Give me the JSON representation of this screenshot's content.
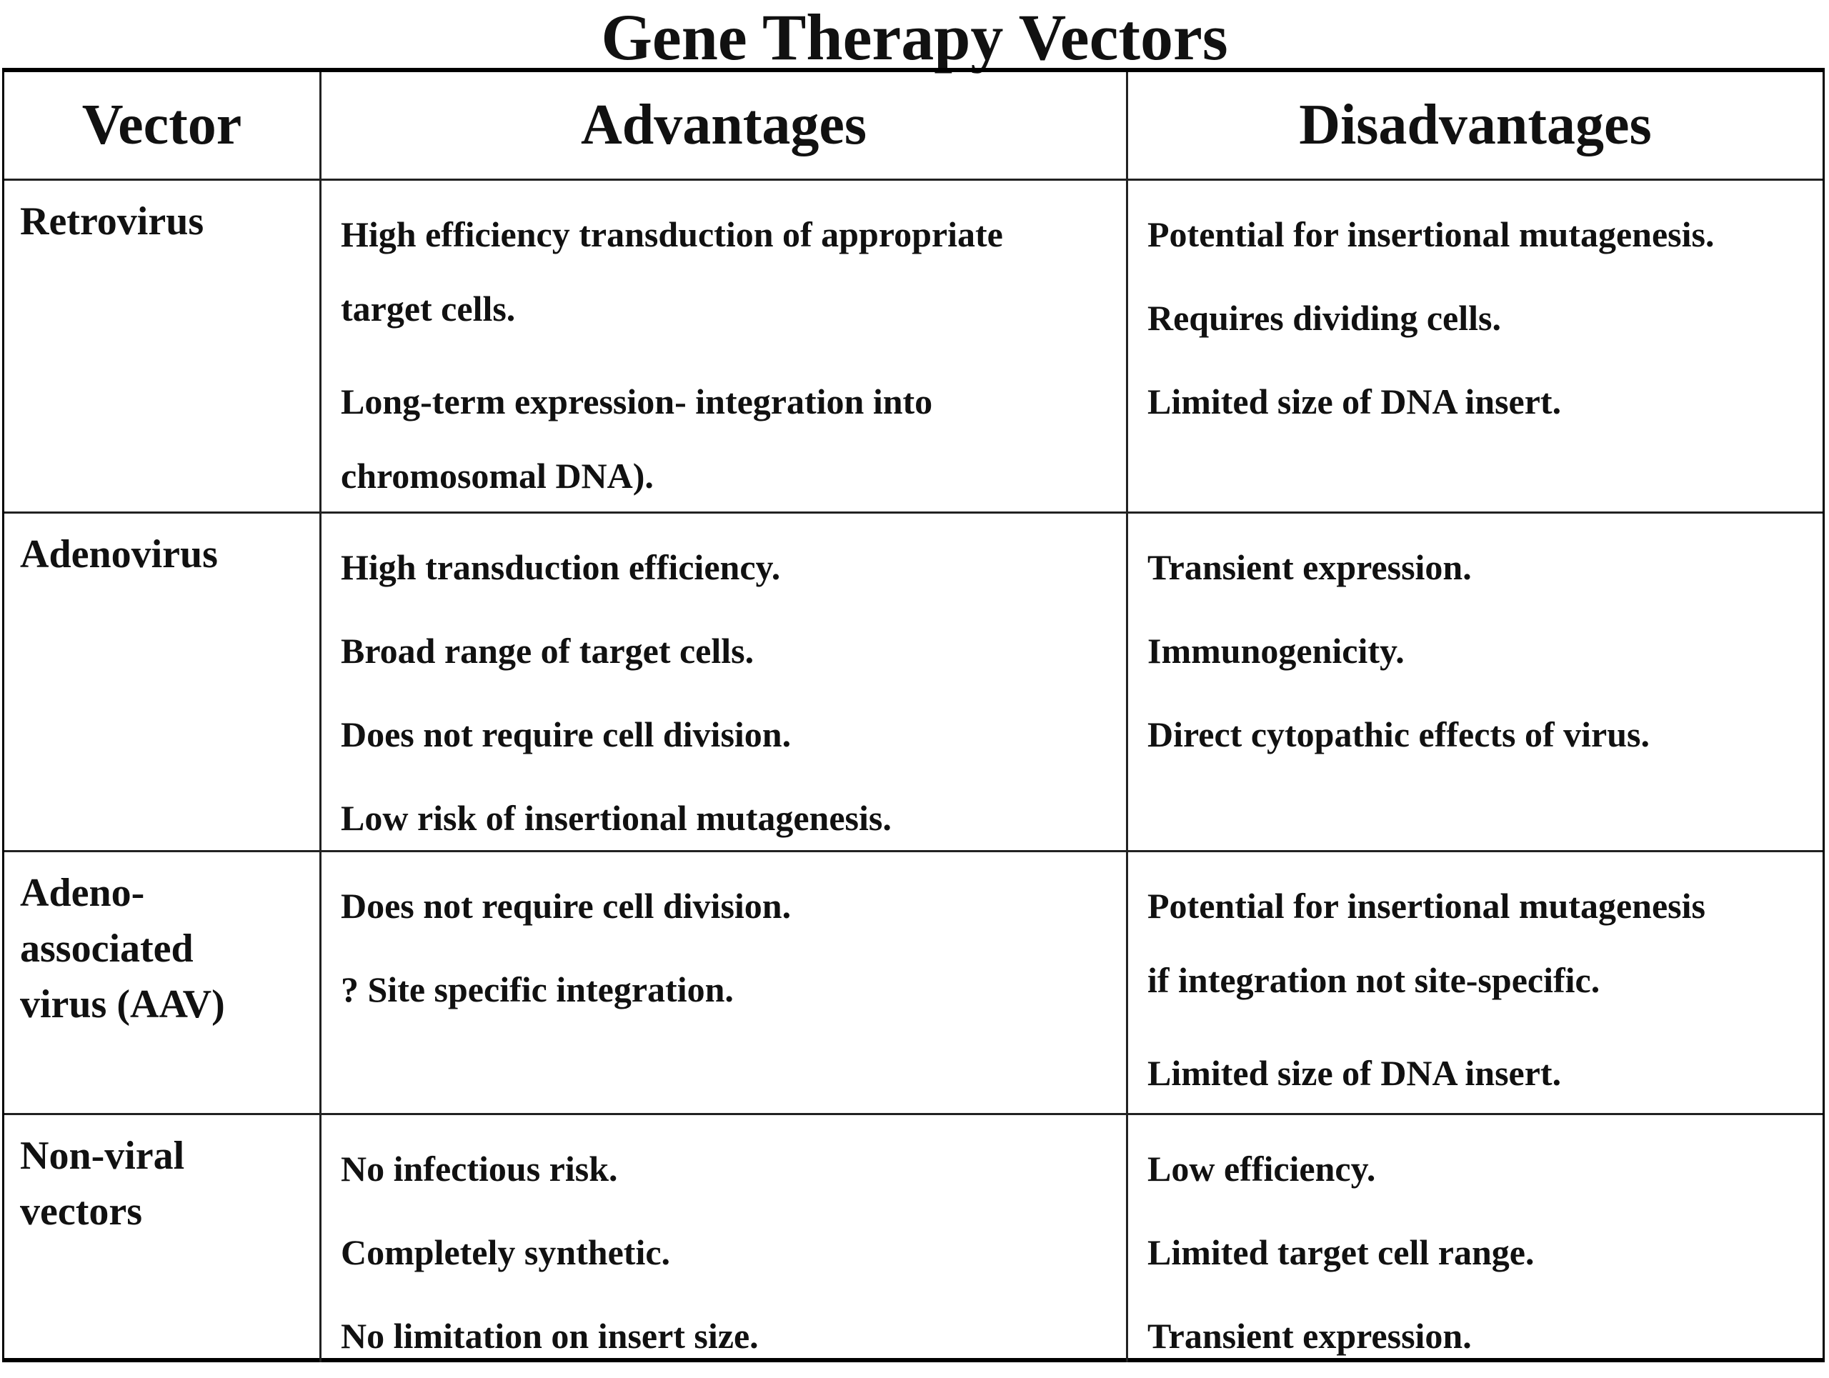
{
  "title": "Gene Therapy Vectors",
  "headers": {
    "vector": "Vector",
    "advantages": "Advantages",
    "disadvantages": "Disadvantages"
  },
  "rows": [
    {
      "vector": [
        "Retrovirus"
      ],
      "advantages": [
        "High efficiency transduction of appropriate",
        "target cells.",
        "Long-term expression-  integration into",
        "chromosomal DNA)."
      ],
      "disadvantages": [
        "Potential for insertional mutagenesis.",
        "Requires dividing cells.",
        "Limited size of DNA insert."
      ]
    },
    {
      "vector": [
        "Adenovirus"
      ],
      "advantages": [
        "High transduction efficiency.",
        "Broad range of target cells.",
        "Does not require cell division.",
        "Low risk of insertional mutagenesis."
      ],
      "disadvantages": [
        "Transient expression.",
        "Immunogenicity.",
        "Direct cytopathic effects of virus."
      ]
    },
    {
      "vector": [
        "Adeno-",
        "associated",
        "virus (AAV)"
      ],
      "advantages": [
        "Does not require cell division.",
        " ? Site specific integration."
      ],
      "disadvantages": [
        "Potential for insertional mutagenesis",
        "if integration not site-specific.",
        "Limited size of DNA insert."
      ]
    },
    {
      "vector": [
        "Non-viral",
        "vectors"
      ],
      "advantages": [
        "No infectious risk.",
        "Completely synthetic.",
        "No limitation on insert size."
      ],
      "disadvantages": [
        "Low efficiency.",
        "Limited target cell range.",
        "Transient expression."
      ]
    }
  ]
}
